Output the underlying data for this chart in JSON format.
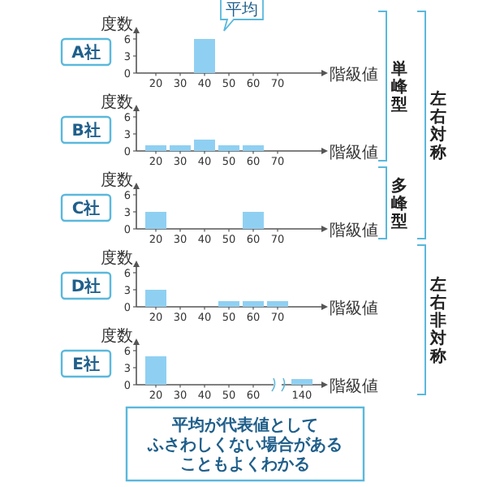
{
  "chart_data": [
    {
      "type": "bar",
      "title": "A社",
      "ylabel": "度数",
      "xlabel": "階級値",
      "categories": [
        "20",
        "30",
        "40",
        "50",
        "60",
        "70"
      ],
      "values": [
        0,
        0,
        6,
        0,
        0,
        0
      ],
      "color": "#8fd0f2",
      "ylim": [
        0,
        7
      ],
      "yticks": [
        0,
        3,
        6
      ],
      "annotations": [
        {
          "text": "平均",
          "x": "40",
          "y": 6
        },
        "単峰型",
        "左右対称"
      ]
    },
    {
      "type": "bar",
      "title": "B社",
      "ylabel": "度数",
      "xlabel": "階級値",
      "categories": [
        "20",
        "30",
        "40",
        "50",
        "60",
        "70"
      ],
      "values": [
        1,
        1,
        2,
        1,
        1,
        0
      ],
      "color": "#8fd0f2",
      "ylim": [
        0,
        7
      ],
      "yticks": [
        0,
        3,
        6
      ]
    },
    {
      "type": "bar",
      "title": "C社",
      "ylabel": "度数",
      "xlabel": "階級値",
      "categories": [
        "20",
        "30",
        "40",
        "50",
        "60",
        "70"
      ],
      "values": [
        3,
        0,
        0,
        0,
        3,
        0
      ],
      "color": "#8fd0f2",
      "ylim": [
        0,
        7
      ],
      "yticks": [
        0,
        3,
        6
      ],
      "annotations": [
        "多峰型"
      ]
    },
    {
      "type": "bar",
      "title": "D社",
      "ylabel": "度数",
      "xlabel": "階級値",
      "categories": [
        "20",
        "30",
        "40",
        "50",
        "60",
        "70"
      ],
      "values": [
        3,
        0,
        0,
        1,
        1,
        1
      ],
      "color": "#8fd0f2",
      "ylim": [
        0,
        7
      ],
      "yticks": [
        0,
        3,
        6
      ],
      "annotations": [
        "左右非対称"
      ]
    },
    {
      "type": "bar",
      "title": "E社",
      "ylabel": "度数",
      "xlabel": "階級値",
      "categories": [
        "20",
        "30",
        "40",
        "50",
        "60",
        null,
        "140"
      ],
      "values": [
        5,
        0,
        0,
        0,
        0,
        null,
        1
      ],
      "color": "#8fd0f2",
      "ylim": [
        0,
        7
      ],
      "yticks": [
        0,
        3,
        6
      ],
      "annotations": [
        "平均が代表値として",
        "ふさわしくない場合がある",
        "こともよくわかる"
      ]
    }
  ]
}
